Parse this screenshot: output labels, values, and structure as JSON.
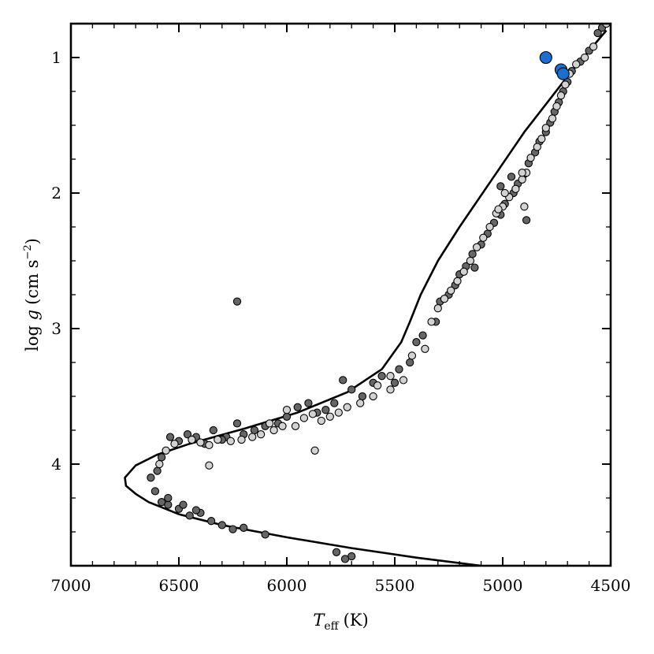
{
  "chart_data": {
    "type": "scatter",
    "title": "",
    "xlabel": {
      "main": "T",
      "sub": "eff",
      "unit": "(K)"
    },
    "ylabel": {
      "pre": "log ",
      "var": "g",
      "unit": "(cm s",
      "exp": "−2",
      "close": ")"
    },
    "xlim": [
      7000,
      4500
    ],
    "ylim": [
      0.75,
      4.75
    ],
    "x_ticks": [
      7000,
      6500,
      6000,
      5500,
      5000,
      4500
    ],
    "y_ticks": [
      1,
      2,
      3,
      4
    ],
    "colors": {
      "dark_points": "#666666",
      "light_points": "#d2d2d2",
      "highlight_points": "#1a6fd1",
      "isochrone": "#000000",
      "point_edge": "#000000"
    },
    "series": [
      {
        "name": "isochrone",
        "type": "line",
        "points": [
          [
            4520,
            0.8
          ],
          [
            4700,
            1.14
          ],
          [
            4900,
            1.55
          ],
          [
            5050,
            1.9
          ],
          [
            5200,
            2.25
          ],
          [
            5300,
            2.5
          ],
          [
            5380,
            2.75
          ],
          [
            5430,
            2.95
          ],
          [
            5470,
            3.1
          ],
          [
            5560,
            3.3
          ],
          [
            5720,
            3.47
          ],
          [
            5950,
            3.62
          ],
          [
            6200,
            3.74
          ],
          [
            6450,
            3.85
          ],
          [
            6600,
            3.93
          ],
          [
            6700,
            4.01
          ],
          [
            6750,
            4.1
          ],
          [
            6745,
            4.16
          ],
          [
            6700,
            4.22
          ],
          [
            6640,
            4.28
          ],
          [
            6500,
            4.37
          ],
          [
            6300,
            4.45
          ],
          [
            6000,
            4.54
          ],
          [
            5700,
            4.62
          ],
          [
            5400,
            4.69
          ],
          [
            5100,
            4.75
          ]
        ]
      },
      {
        "name": "dark points",
        "type": "scatter",
        "points": [
          [
            4540,
            0.78
          ],
          [
            4560,
            0.82
          ],
          [
            4600,
            0.95
          ],
          [
            4640,
            1.03
          ],
          [
            4680,
            1.1
          ],
          [
            4700,
            1.18
          ],
          [
            4720,
            1.25
          ],
          [
            4740,
            1.33
          ],
          [
            4760,
            1.4
          ],
          [
            4780,
            1.48
          ],
          [
            4800,
            1.55
          ],
          [
            4830,
            1.62
          ],
          [
            4850,
            1.7
          ],
          [
            4880,
            1.78
          ],
          [
            4900,
            1.86
          ],
          [
            4930,
            1.93
          ],
          [
            4950,
            2.0
          ],
          [
            4990,
            2.08
          ],
          [
            5010,
            2.16
          ],
          [
            5040,
            2.22
          ],
          [
            5070,
            2.3
          ],
          [
            5100,
            2.38
          ],
          [
            5140,
            2.45
          ],
          [
            5170,
            2.54
          ],
          [
            5200,
            2.6
          ],
          [
            5220,
            2.68
          ],
          [
            5250,
            2.75
          ],
          [
            5290,
            2.8
          ],
          [
            5310,
            2.95
          ],
          [
            5370,
            3.05
          ],
          [
            5400,
            3.1
          ],
          [
            5430,
            3.25
          ],
          [
            5480,
            3.3
          ],
          [
            5560,
            3.35
          ],
          [
            5600,
            3.4
          ],
          [
            5650,
            3.5
          ],
          [
            5700,
            3.45
          ],
          [
            5740,
            3.38
          ],
          [
            5780,
            3.55
          ],
          [
            5820,
            3.6
          ],
          [
            5860,
            3.62
          ],
          [
            5900,
            3.55
          ],
          [
            5950,
            3.58
          ],
          [
            6000,
            3.65
          ],
          [
            6040,
            3.7
          ],
          [
            6100,
            3.72
          ],
          [
            6150,
            3.75
          ],
          [
            6200,
            3.78
          ],
          [
            6230,
            3.7
          ],
          [
            6280,
            3.8
          ],
          [
            6300,
            3.82
          ],
          [
            6340,
            3.75
          ],
          [
            6380,
            3.85
          ],
          [
            6420,
            3.8
          ],
          [
            6460,
            3.78
          ],
          [
            6500,
            3.83
          ],
          [
            6540,
            3.8
          ],
          [
            6580,
            3.95
          ],
          [
            6600,
            4.05
          ],
          [
            6630,
            4.1
          ],
          [
            6610,
            4.2
          ],
          [
            6580,
            4.28
          ],
          [
            6550,
            4.3
          ],
          [
            6500,
            4.33
          ],
          [
            6450,
            4.38
          ],
          [
            6400,
            4.36
          ],
          [
            6350,
            4.42
          ],
          [
            6300,
            4.45
          ],
          [
            6250,
            4.48
          ],
          [
            6200,
            4.47
          ],
          [
            6100,
            4.52
          ],
          [
            6230,
            2.8
          ],
          [
            4890,
            2.2
          ],
          [
            5770,
            4.65
          ],
          [
            5700,
            4.68
          ],
          [
            5730,
            4.7
          ],
          [
            6550,
            4.25
          ],
          [
            6480,
            4.3
          ],
          [
            6420,
            4.34
          ],
          [
            5130,
            2.55
          ],
          [
            5010,
            1.95
          ],
          [
            4960,
            1.88
          ],
          [
            5500,
            3.4
          ]
        ]
      },
      {
        "name": "light points",
        "type": "scatter",
        "points": [
          [
            4520,
            0.75
          ],
          [
            4580,
            0.92
          ],
          [
            4620,
            1.0
          ],
          [
            4660,
            1.05
          ],
          [
            4690,
            1.12
          ],
          [
            4710,
            1.2
          ],
          [
            4730,
            1.28
          ],
          [
            4750,
            1.36
          ],
          [
            4770,
            1.45
          ],
          [
            4800,
            1.52
          ],
          [
            4820,
            1.6
          ],
          [
            4840,
            1.66
          ],
          [
            4870,
            1.74
          ],
          [
            4890,
            1.85
          ],
          [
            4910,
            1.9
          ],
          [
            4940,
            1.97
          ],
          [
            4970,
            2.03
          ],
          [
            5000,
            2.1
          ],
          [
            5030,
            2.15
          ],
          [
            5060,
            2.25
          ],
          [
            5090,
            2.33
          ],
          [
            5120,
            2.4
          ],
          [
            5150,
            2.5
          ],
          [
            5180,
            2.58
          ],
          [
            5210,
            2.65
          ],
          [
            5240,
            2.72
          ],
          [
            5270,
            2.78
          ],
          [
            5300,
            2.85
          ],
          [
            5330,
            2.95
          ],
          [
            5360,
            3.15
          ],
          [
            5420,
            3.2
          ],
          [
            5460,
            3.38
          ],
          [
            5520,
            3.45
          ],
          [
            5600,
            3.5
          ],
          [
            5660,
            3.55
          ],
          [
            5720,
            3.58
          ],
          [
            5760,
            3.62
          ],
          [
            5800,
            3.65
          ],
          [
            5840,
            3.68
          ],
          [
            5880,
            3.63
          ],
          [
            5920,
            3.66
          ],
          [
            5960,
            3.72
          ],
          [
            6020,
            3.72
          ],
          [
            6060,
            3.75
          ],
          [
            6120,
            3.78
          ],
          [
            6160,
            3.8
          ],
          [
            6210,
            3.82
          ],
          [
            6260,
            3.83
          ],
          [
            6320,
            3.82
          ],
          [
            6360,
            3.86
          ],
          [
            6400,
            3.84
          ],
          [
            6440,
            3.82
          ],
          [
            6520,
            3.85
          ],
          [
            6560,
            3.9
          ],
          [
            6590,
            4.0
          ],
          [
            5870,
            3.9
          ],
          [
            6360,
            4.01
          ],
          [
            4900,
            2.1
          ],
          [
            4910,
            1.85
          ],
          [
            4990,
            2.0
          ],
          [
            5020,
            2.12
          ],
          [
            5520,
            3.35
          ],
          [
            5580,
            3.42
          ],
          [
            6000,
            3.6
          ],
          [
            6080,
            3.7
          ]
        ]
      },
      {
        "name": "highlighted stars",
        "type": "scatter",
        "points": [
          [
            4800,
            1.0
          ],
          [
            4730,
            1.09
          ],
          [
            4720,
            1.12
          ]
        ]
      }
    ]
  }
}
